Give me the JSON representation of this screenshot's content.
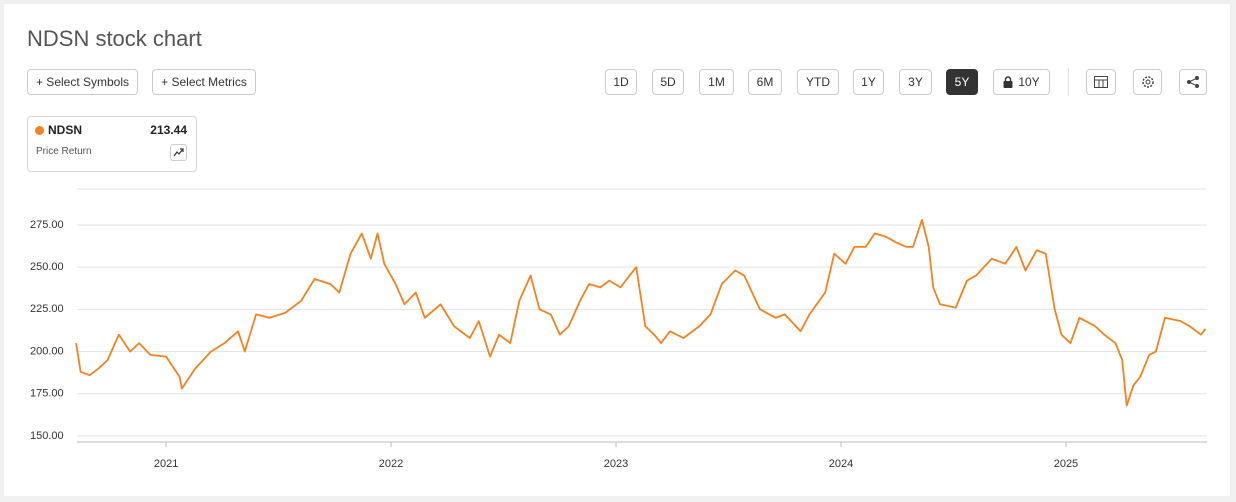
{
  "chart_data": {
    "type": "line",
    "title": "NDSN stock chart",
    "x": [
      2020.6,
      2020.62,
      2020.66,
      2020.7,
      2020.74,
      2020.79,
      2020.84,
      2020.88,
      2020.93,
      2021.0,
      2021.06,
      2021.07,
      2021.13,
      2021.2,
      2021.26,
      2021.32,
      2021.35,
      2021.4,
      2021.46,
      2021.53,
      2021.6,
      2021.66,
      2021.73,
      2021.77,
      2021.82,
      2021.87,
      2021.91,
      2021.94,
      2021.97,
      2022.02,
      2022.06,
      2022.11,
      2022.15,
      2022.22,
      2022.28,
      2022.35,
      2022.39,
      2022.44,
      2022.48,
      2022.53,
      2022.57,
      2022.62,
      2022.66,
      2022.71,
      2022.75,
      2022.79,
      2022.84,
      2022.88,
      2022.93,
      2022.97,
      2023.02,
      2023.06,
      2023.09,
      2023.13,
      2023.17,
      2023.2,
      2023.24,
      2023.3,
      2023.37,
      2023.42,
      2023.47,
      2023.53,
      2023.57,
      2023.64,
      2023.71,
      2023.75,
      2023.8,
      2023.82,
      2023.86,
      2023.93,
      2023.97,
      2024.02,
      2024.06,
      2024.11,
      2024.15,
      2024.2,
      2024.24,
      2024.29,
      2024.32,
      2024.36,
      2024.39,
      2024.41,
      2024.44,
      2024.51,
      2024.56,
      2024.6,
      2024.67,
      2024.73,
      2024.78,
      2024.82,
      2024.87,
      2024.91,
      2024.95,
      2024.98,
      2025.02,
      2025.06,
      2025.13,
      2025.17,
      2025.22,
      2025.25,
      2025.27,
      2025.3,
      2025.33,
      2025.37,
      2025.4,
      2025.44,
      2025.51,
      2025.55,
      2025.6,
      2025.62
    ],
    "series": [
      {
        "name": "NDSN",
        "color": "#f5821f",
        "values": [
          205,
          188,
          186,
          190,
          195,
          210,
          200,
          205,
          198,
          197,
          185,
          178,
          190,
          200,
          205,
          212,
          200,
          222,
          220,
          223,
          230,
          243,
          240,
          235,
          258,
          270,
          255,
          270,
          252,
          240,
          228,
          235,
          220,
          228,
          215,
          208,
          218,
          197,
          210,
          205,
          230,
          245,
          225,
          222,
          210,
          215,
          230,
          240,
          238,
          242,
          238,
          245,
          250,
          215,
          210,
          205,
          212,
          208,
          215,
          222,
          240,
          248,
          245,
          225,
          220,
          222,
          215,
          212,
          222,
          235,
          258,
          252,
          262,
          262,
          270,
          268,
          265,
          262,
          262,
          278,
          262,
          238,
          228,
          226,
          242,
          245,
          255,
          252,
          262,
          248,
          260,
          258,
          225,
          210,
          205,
          220,
          215,
          210,
          205,
          195,
          168,
          180,
          185,
          198,
          200,
          220,
          218,
          215,
          210,
          213.44
        ]
      }
    ],
    "last_value": 213.44,
    "metric": "Price Return",
    "xlim": [
      2020.604,
      2025.627
    ],
    "xticks": [
      2021,
      2022,
      2023,
      2024,
      2025
    ],
    "ylim": [
      146.4,
      296.3
    ],
    "yticks": [
      {
        "value": 150,
        "label": "150.00"
      },
      {
        "value": 175,
        "label": "175.00"
      },
      {
        "value": 200,
        "label": "200.00"
      },
      {
        "value": 225,
        "label": "225.00"
      },
      {
        "value": 250,
        "label": "250.00"
      },
      {
        "value": 275,
        "label": "275.00"
      }
    ],
    "grid": true
  },
  "toolbar": {
    "actions": [
      "+ Select Symbols",
      "+ Select Metrics"
    ],
    "periods": [
      "1D",
      "5D",
      "1M",
      "6M",
      "YTD",
      "1Y",
      "3Y",
      "5Y",
      "10Y"
    ],
    "active_period": 7
  }
}
